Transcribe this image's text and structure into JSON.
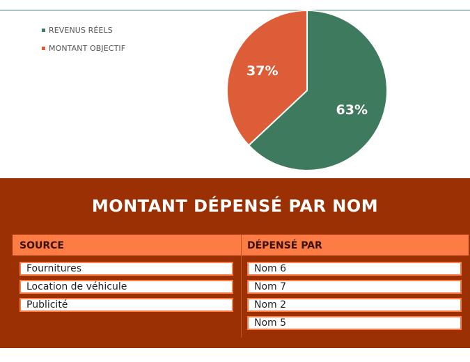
{
  "legend": [
    {
      "label": "REVENUS RÉELS",
      "color": "#3e7a5e"
    },
    {
      "label": "MONTANT OBJECTIF",
      "color": "#dc5d37"
    }
  ],
  "chart_data": {
    "type": "pie",
    "categories": [
      "REVENUS RÉELS",
      "MONTANT OBJECTIF"
    ],
    "values": [
      63,
      37
    ],
    "labels": [
      "63%",
      "37%"
    ],
    "colors": [
      "#3e7a5e",
      "#dc5d37"
    ],
    "legend_position": "top-left"
  },
  "panel": {
    "title": "MONTANT DÉPENSÉ PAR NOM",
    "headers": {
      "source": "SOURCE",
      "spent_by": "DÉPENSÉ PAR"
    },
    "sources": [
      "Fournitures",
      "Location de véhicule",
      "Publicité"
    ],
    "spent_by": [
      "Nom 6",
      "Nom 7",
      "Nom 2",
      "Nom 5"
    ],
    "colors": {
      "background": "#9a3003",
      "header": "#fd7b45"
    }
  }
}
